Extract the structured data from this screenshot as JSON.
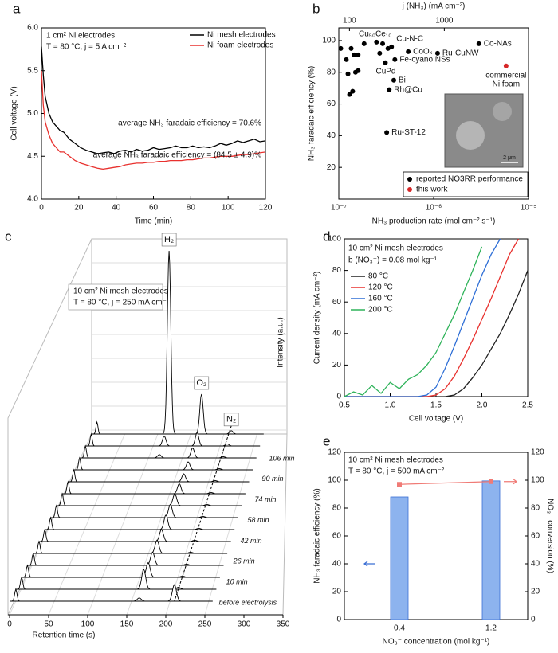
{
  "chart_data": [
    {
      "panel": "a",
      "type": "line",
      "xlabel": "Time (min)",
      "ylabel": "Cell voltage (V)",
      "annotations": [
        "1 cm² Ni electrodes",
        "T = 80 °C, j = 5 A cm⁻²",
        "average NH₃ faradaic efficiency = 70.6%",
        "average NH₃ faradaic efficiency = (84.5 ± 4.9)%"
      ],
      "x": [
        0,
        1,
        2,
        4,
        6,
        8,
        10,
        12,
        15,
        18,
        21,
        24,
        27,
        30,
        33,
        36,
        39,
        42,
        45,
        48,
        51,
        54,
        57,
        60,
        63,
        66,
        69,
        72,
        75,
        78,
        81,
        84,
        87,
        90,
        93,
        96,
        99,
        102,
        105,
        108,
        111,
        114,
        117,
        120
      ],
      "series": [
        {
          "name": "Ni mesh electrodes",
          "color": "#000000",
          "values": [
            5.78,
            5.45,
            5.2,
            5.0,
            4.9,
            4.85,
            4.8,
            4.78,
            4.7,
            4.65,
            4.6,
            4.57,
            4.55,
            4.53,
            4.54,
            4.55,
            4.53,
            4.56,
            4.57,
            4.55,
            4.58,
            4.56,
            4.57,
            4.6,
            4.58,
            4.59,
            4.6,
            4.62,
            4.6,
            4.6,
            4.62,
            4.6,
            4.61,
            4.6,
            4.62,
            4.65,
            4.63,
            4.65,
            4.68,
            4.66,
            4.68,
            4.7,
            4.67,
            4.68
          ]
        },
        {
          "name": "Ni foam electrodes",
          "color": "#e8312e",
          "values": [
            5.5,
            5.1,
            4.9,
            4.75,
            4.65,
            4.6,
            4.55,
            4.55,
            4.5,
            4.45,
            4.42,
            4.4,
            4.38,
            4.36,
            4.35,
            4.36,
            4.37,
            4.38,
            4.4,
            4.41,
            4.42,
            4.42,
            4.43,
            4.43,
            4.44,
            4.44,
            4.45,
            4.45,
            4.45,
            4.46,
            4.46,
            4.47,
            4.48,
            4.48,
            4.49,
            4.5,
            4.5,
            4.5,
            4.51,
            4.52,
            4.52,
            4.53,
            4.54,
            4.55
          ]
        }
      ],
      "xlim": [
        0,
        120
      ],
      "xticks": [
        0,
        20,
        40,
        60,
        80,
        100,
        120
      ],
      "ylim": [
        4.0,
        6.0
      ],
      "yticks": [
        {
          "value": 4,
          "label": "4.0"
        },
        4.5,
        {
          "value": 5,
          "label": "5.0"
        },
        5.5,
        {
          "value": 6,
          "label": "6.0"
        }
      ],
      "legend": "upper right"
    },
    {
      "panel": "b",
      "type": "scatter",
      "xlabel": "NH₃ production rate (mol cm⁻² s⁻¹)",
      "ylabel": "NH₃ faradaic efficiency (%)",
      "x2label": "j (NH₃) (mA cm⁻²)",
      "xlog": true,
      "xlim": [
        1e-07,
        1e-05
      ],
      "xticks": [
        {
          "value": 1e-07,
          "label": "10⁻⁷"
        },
        {
          "value": 1e-06,
          "label": "10⁻⁶"
        },
        {
          "value": 1e-05,
          "label": "10⁻⁵"
        }
      ],
      "x2lim": [
        77.2,
        7720
      ],
      "x2ticks": [
        100,
        1000
      ],
      "ylim": [
        0,
        108
      ],
      "yticks": [
        20,
        40,
        60,
        80,
        100
      ],
      "series": [
        {
          "name": "reported NO3RR performance",
          "color": "#000000",
          "x": [
            2.9e-07,
            3.6e-07,
            5.4e-07,
            1.1e-06,
            3e-06,
            3.9e-07,
            3.1e-07,
            3.8e-07,
            3.4e-07,
            3.2e-07,
            1.05e-07,
            1.2e-07,
            1.25e-07,
            1.3e-07,
            1.4e-07,
            1.35e-07,
            1.45e-07,
            1.5e-07,
            1.6e-07,
            1.6e-07,
            1.85e-07,
            2.5e-07,
            3.3e-07,
            2.7e-07
          ],
          "values": [
            98,
            96,
            93,
            92,
            98,
            88,
            86,
            75,
            69,
            42,
            95,
            88,
            79,
            66,
            68,
            95,
            91,
            80,
            91,
            81,
            98,
            99,
            95,
            92
          ],
          "point_labels": [
            "Cu₅₀Ce₁₀",
            "Cu-N-C",
            "CoOₓ",
            "Ru-CuNW",
            "Co-NAs",
            "Fe-cyano NSs",
            "CuPd",
            "Bi",
            "Rh@Cu",
            "Ru-ST-12",
            null,
            null,
            null,
            null,
            null,
            null,
            null,
            null,
            null,
            null,
            null,
            null,
            null,
            null
          ]
        },
        {
          "name": "this work",
          "color": "#d62728",
          "x": [
            5.8e-06
          ],
          "values": [
            84
          ],
          "point_labels": [
            [
              "commercial",
              "Ni foam"
            ]
          ]
        }
      ],
      "legend": "lower right",
      "inset_scale_label": "2 μm"
    },
    {
      "panel": "c",
      "type": "waterfall",
      "xlabel": "Retention time (s)",
      "ylabel": "Intensity (a.u.)",
      "annotations": [
        "10 cm² Ni mesh electrodes",
        "T = 80 °C, j = 250 mA cm⁻²"
      ],
      "xlim": [
        0,
        350
      ],
      "xticks": [
        0,
        50,
        100,
        150,
        200,
        250,
        300,
        350
      ],
      "ylim": [
        0,
        300
      ],
      "color": "#000000",
      "peak_x": [
        8,
        117,
        166,
        211
      ],
      "peak_labels": [
        null,
        "H₂",
        "O₂",
        "N₂"
      ],
      "series": [
        {
          "name": "before electrolysis",
          "values": [
            18,
            0,
            5,
            25
          ]
        },
        {
          "name": null,
          "values": [
            18,
            0,
            30,
            3
          ]
        },
        {
          "name": "10 min",
          "values": [
            18,
            0,
            22,
            2
          ]
        },
        {
          "name": null,
          "values": [
            18,
            0,
            20,
            2
          ]
        },
        {
          "name": "26 min",
          "values": [
            18,
            0,
            20,
            2
          ]
        },
        {
          "name": null,
          "values": [
            18,
            0,
            18,
            2
          ]
        },
        {
          "name": "42 min",
          "values": [
            18,
            0,
            22,
            2
          ]
        },
        {
          "name": null,
          "values": [
            18,
            0,
            20,
            2
          ]
        },
        {
          "name": "58 min",
          "values": [
            18,
            0,
            18,
            2
          ]
        },
        {
          "name": null,
          "values": [
            18,
            0,
            15,
            2
          ]
        },
        {
          "name": "74 min",
          "values": [
            18,
            0,
            12,
            2
          ]
        },
        {
          "name": null,
          "values": [
            18,
            0,
            12,
            2
          ]
        },
        {
          "name": "90 min",
          "values": [
            18,
            5,
            15,
            2
          ]
        },
        {
          "name": null,
          "values": [
            18,
            15,
            20,
            3
          ]
        },
        {
          "name": "106 min",
          "values": [
            18,
            276,
            60,
            5
          ]
        }
      ]
    },
    {
      "panel": "d",
      "type": "line",
      "xlabel": "Cell voltage (V)",
      "ylabel": "Current density (mA cm⁻²)",
      "annotations": [
        "10 cm² Ni mesh electrodes",
        "b (NO₃⁻) = 0.08 mol kg⁻¹"
      ],
      "x": [
        0.5,
        0.6,
        0.7,
        0.8,
        0.9,
        1.0,
        1.1,
        1.2,
        1.3,
        1.4,
        1.5,
        1.6,
        1.7,
        1.8,
        1.9,
        2.0,
        2.1,
        2.2,
        2.3,
        2.4,
        2.5
      ],
      "series": [
        {
          "name": "80 °C",
          "color": "#222222",
          "values": [
            0,
            0,
            0,
            0,
            0,
            0,
            0,
            0,
            0,
            0,
            0,
            0,
            1,
            5,
            12,
            20,
            30,
            40,
            52,
            65,
            80
          ]
        },
        {
          "name": "120 °C",
          "color": "#e8312e",
          "values": [
            0,
            0,
            0,
            0,
            0,
            0,
            0,
            0,
            0,
            0,
            1,
            5,
            13,
            24,
            36,
            49,
            62,
            76,
            90,
            100,
            null
          ]
        },
        {
          "name": "160 °C",
          "color": "#2f6fd6",
          "values": [
            0,
            0,
            0,
            0,
            0,
            0,
            0,
            0,
            0,
            1,
            6,
            18,
            32,
            47,
            62,
            77,
            90,
            100,
            null,
            null,
            null
          ]
        },
        {
          "name": "200 °C",
          "color": "#2fb35a",
          "values": [
            0,
            3,
            1,
            7,
            2,
            9,
            5,
            11,
            14,
            20,
            28,
            40,
            52,
            66,
            80,
            95,
            null,
            null,
            null,
            null,
            null
          ]
        }
      ],
      "xlim": [
        0.5,
        2.5
      ],
      "xticks": [
        0.5,
        {
          "value": 1,
          "label": "1.0"
        },
        1.5,
        {
          "value": 2,
          "label": "2.0"
        },
        2.5
      ],
      "ylim": [
        0,
        100
      ],
      "yticks": [
        0,
        20,
        40,
        60,
        80,
        100
      ],
      "legend": "upper left"
    },
    {
      "panel": "e",
      "type": "bar",
      "xlabel": "NO₃⁻ concentration (mol kg⁻¹)",
      "ylabel": "NH₃ faradaic efficiency (%)",
      "y2label": "NO₃⁻ conversion (%)",
      "annotations": [
        "10 cm² Ni mesh electrodes",
        "T = 80 °C, j = 500 mA cm⁻²"
      ],
      "categories": [
        "0.4",
        "1.2"
      ],
      "series": [
        {
          "type": "bar",
          "color": "#8db3ee",
          "values": [
            88,
            99.5
          ]
        },
        {
          "type": "scatter",
          "axis": "y2",
          "color": "#f07b76",
          "values": [
            97,
            99
          ]
        }
      ],
      "ylim": [
        0,
        120
      ],
      "yticks": [
        0,
        20,
        40,
        60,
        80,
        100,
        120
      ],
      "y2lim": [
        0,
        120
      ],
      "y2ticks": [
        0,
        20,
        40,
        60,
        80,
        100,
        120
      ]
    }
  ]
}
